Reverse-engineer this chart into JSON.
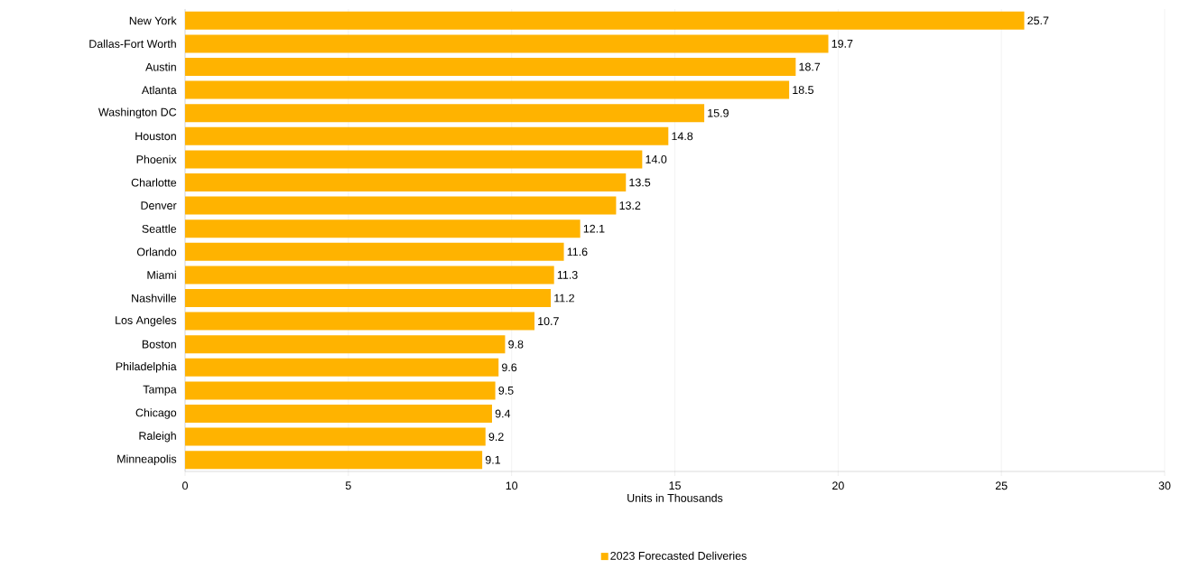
{
  "chart_data": {
    "type": "bar",
    "orientation": "horizontal",
    "xlabel": "Units in Thousands",
    "categories": [
      "New York",
      "Dallas-Fort Worth",
      "Austin",
      "Atlanta",
      "Washington DC",
      "Houston",
      "Phoenix",
      "Charlotte",
      "Denver",
      "Seattle",
      "Orlando",
      "Miami",
      "Nashville",
      "Los Angeles",
      "Boston",
      "Philadelphia",
      "Tampa",
      "Chicago",
      "Raleigh",
      "Minneapolis"
    ],
    "series": [
      {
        "name": "2023 Forecasted Deliveries",
        "color": "#ffb300",
        "values": [
          25.7,
          19.7,
          18.7,
          18.5,
          15.9,
          14.8,
          14.0,
          13.5,
          13.2,
          12.1,
          11.6,
          11.3,
          11.2,
          10.7,
          9.8,
          9.6,
          9.5,
          9.4,
          9.2,
          9.1
        ],
        "value_labels": [
          "25.7",
          "19.7",
          "18.7",
          "18.5",
          "15.9",
          "14.8",
          "14.0",
          "13.5",
          "13.2",
          "12.1",
          "11.6",
          "11.3",
          "11.2",
          "10.7",
          "9.8",
          "9.6",
          "9.5",
          "9.4",
          "9.2",
          "9.1"
        ]
      }
    ],
    "xlim": [
      0,
      30
    ],
    "xticks": [
      0,
      5,
      10,
      15,
      20,
      25,
      30
    ],
    "grid": "x",
    "legend": "bottom"
  }
}
